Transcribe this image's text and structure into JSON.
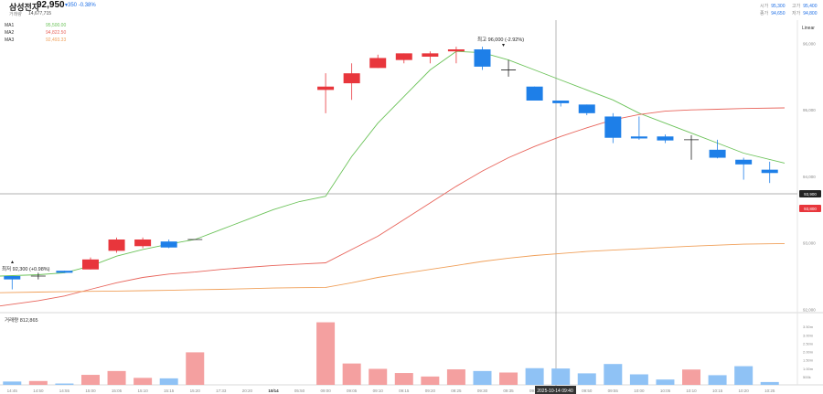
{
  "header": {
    "name": "삼성전자",
    "price": "92,950",
    "change": "▾350  -0.38%",
    "volume_label": "거래량",
    "volume_value": "14,677,715",
    "ohlc": [
      {
        "k": "시가",
        "v": "95,300"
      },
      {
        "k": "고가",
        "v": "95,400"
      },
      {
        "k": "종가",
        "v": "94,650"
      },
      {
        "k": "저가",
        "v": "94,800"
      }
    ]
  },
  "ma_legend": [
    {
      "name": "MA1",
      "value": "95,500.00",
      "color": "#6cc35a"
    },
    {
      "name": "MA2",
      "value": "94,822.50",
      "color": "#e8655c"
    },
    {
      "name": "MA3",
      "value": "92,493.33",
      "color": "#f0a05a"
    }
  ],
  "scale_label": "Linear",
  "chart_data": {
    "type": "candlestick",
    "y_ticks": [
      "96,000",
      "95,000",
      "94,000",
      "93,000",
      "92,000"
    ],
    "x_ticks": [
      "14:45",
      "14:50",
      "14:55",
      "15:00",
      "15:05",
      "15:10",
      "15:15",
      "15:20",
      "17:33",
      "20:20",
      "10/14",
      "05:50",
      "09:00",
      "09:05",
      "09:10",
      "09:15",
      "09:20",
      "09:25",
      "09:30",
      "09:35",
      "09:40",
      "09:45",
      "09:50",
      "09:55",
      "10:00",
      "10:05",
      "10:10",
      "10:15",
      "10:20",
      "10:25"
    ],
    "ylim": [
      91950,
      96350
    ],
    "candles": [
      {
        "o": 92500,
        "c": 92450,
        "h": 92500,
        "l": 92300
      },
      {
        "o": 92500,
        "c": 92500,
        "h": 92550,
        "l": 92450
      },
      {
        "o": 92580,
        "c": 92550,
        "h": 92580,
        "l": 92550
      },
      {
        "o": 92600,
        "c": 92750,
        "h": 92780,
        "l": 92600
      },
      {
        "o": 92880,
        "c": 93050,
        "h": 93080,
        "l": 92850
      },
      {
        "o": 92950,
        "c": 93050,
        "h": 93080,
        "l": 92920
      },
      {
        "o": 93020,
        "c": 92930,
        "h": 93050,
        "l": 92920
      },
      {
        "o": 93050,
        "c": 93050,
        "h": 93050,
        "l": 93050
      },
      null,
      null,
      null,
      null,
      {
        "o": 95300,
        "c": 95350,
        "h": 95550,
        "l": 94950
      },
      {
        "o": 95400,
        "c": 95550,
        "h": 95700,
        "l": 95150
      },
      {
        "o": 95630,
        "c": 95780,
        "h": 95830,
        "l": 95630
      },
      {
        "o": 95750,
        "c": 95850,
        "h": 95850,
        "l": 95700
      },
      {
        "o": 95800,
        "c": 95850,
        "h": 95880,
        "l": 95700
      },
      {
        "o": 95880,
        "c": 95910,
        "h": 95950,
        "l": 95700
      },
      {
        "o": 95910,
        "c": 95650,
        "h": 95950,
        "l": 95600
      },
      {
        "o": 95600,
        "c": 95600,
        "h": 95750,
        "l": 95500
      },
      {
        "o": 95350,
        "c": 95140,
        "h": 95350,
        "l": 95140
      },
      {
        "o": 95140,
        "c": 95100,
        "h": 95140,
        "l": 95050
      },
      {
        "o": 95080,
        "c": 94950,
        "h": 95080,
        "l": 94920
      },
      {
        "o": 94900,
        "c": 94580,
        "h": 94950,
        "l": 94500
      },
      {
        "o": 94600,
        "c": 94570,
        "h": 94900,
        "l": 94550
      },
      {
        "o": 94600,
        "c": 94540,
        "h": 94630,
        "l": 94500
      },
      {
        "o": 94550,
        "c": 94550,
        "h": 94620,
        "l": 94250
      },
      {
        "o": 94400,
        "c": 94280,
        "h": 94550,
        "l": 94270
      },
      {
        "o": 94250,
        "c": 94180,
        "h": 94280,
        "l": 93950
      },
      {
        "o": 94100,
        "c": 94050,
        "h": 94220,
        "l": 93900
      }
    ],
    "ma1": [
      92500,
      92520,
      92550,
      92650,
      92800,
      92900,
      92980,
      93050,
      93200,
      93350,
      93500,
      93620,
      93700,
      94300,
      94800,
      95200,
      95600,
      95880,
      95860,
      95750,
      95600,
      95450,
      95300,
      95150,
      94950,
      94800,
      94650,
      94500,
      94350,
      94200
    ],
    "ma2": [
      92050,
      92130,
      92200,
      92300,
      92400,
      92480,
      92530,
      92560,
      92600,
      92630,
      92660,
      92680,
      92700,
      92900,
      93100,
      93350,
      93600,
      93850,
      94080,
      94280,
      94450,
      94600,
      94730,
      94850,
      94930,
      94980,
      95000,
      95010,
      95020,
      95030
    ],
    "ma3": [
      92250,
      92260,
      92265,
      92270,
      92275,
      92280,
      92285,
      92295,
      92300,
      92310,
      92320,
      92325,
      92330,
      92400,
      92480,
      92540,
      92600,
      92660,
      92720,
      92770,
      92810,
      92840,
      92870,
      92890,
      92910,
      92930,
      92950,
      92965,
      92980,
      92990
    ],
    "volume_label": "거래량 812,865",
    "volume_ticks": [
      "3.50m",
      "3.00m",
      "2.50m",
      "2.00m",
      "1.50m",
      "1.00m",
      "500k"
    ],
    "volume": [
      200000,
      230000,
      80000,
      600000,
      830000,
      420000,
      390000,
      1950000,
      0,
      0,
      0,
      0,
      3750000,
      1280000,
      960000,
      710000,
      500000,
      930000,
      830000,
      740000,
      1000000,
      980000,
      690000,
      1250000,
      630000,
      320000,
      920000,
      580000,
      1120000,
      170000
    ],
    "current_price_label": "93,900",
    "last_tag": "93,800",
    "high_label": "최고  96,000 (-2.92%)",
    "low_label": "최저  92,300 (+0.98%)",
    "crosshair_label": "2025-10-14 09:40"
  }
}
